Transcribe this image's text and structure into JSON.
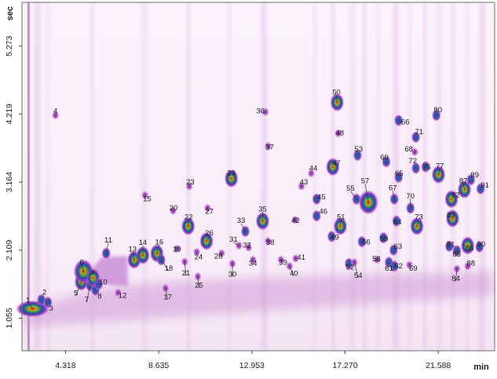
{
  "chart_data": {
    "type": "heatmap",
    "title": "",
    "xlabel": "",
    "ylabel": "",
    "x_unit": "min",
    "y_unit": "sec",
    "x_ticks": [
      "4.318",
      "8.635",
      "12.953",
      "17.270",
      "21.588"
    ],
    "x_tick_values": [
      4.318,
      8.635,
      12.953,
      17.27,
      21.588
    ],
    "y_ticks": [
      "1.055",
      "2.109",
      "3.164",
      "4.219",
      "5.273"
    ],
    "y_tick_values": [
      1.055,
      2.109,
      3.164,
      4.219,
      5.273
    ],
    "xlim": [
      2.3,
      24.2
    ],
    "ylim": [
      0.55,
      5.95
    ],
    "grid": false,
    "legend": "none",
    "colors": {
      "background": "#fbf3fb",
      "low": "#b44fc2",
      "mid": "#2a4fb4",
      "high": "#c81e1e",
      "border": "#606060"
    },
    "peaks": [
      {
        "label": "1",
        "x": 2.79,
        "y": 1.2,
        "lx": 2.58,
        "ly": 1.33
      },
      {
        "label": "2",
        "x": 3.2,
        "y": 1.34,
        "lx": 3.34,
        "ly": 1.45
      },
      {
        "label": "3",
        "x": 3.5,
        "y": 1.3,
        "lx": 3.65,
        "ly": 1.2
      },
      {
        "label": "4",
        "x": 3.85,
        "y": 4.2,
        "lx": 3.85,
        "ly": 4.26
      },
      {
        "label": "5",
        "x": 5.05,
        "y": 1.62,
        "lx": 4.8,
        "ly": 1.44
      },
      {
        "label": "6",
        "x": 5.15,
        "y": 1.78,
        "lx": 5.06,
        "ly": 1.91
      },
      {
        "label": "7",
        "x": 5.45,
        "y": 1.56,
        "lx": 5.3,
        "ly": 1.34
      },
      {
        "label": "8",
        "x": 5.7,
        "y": 1.49,
        "lx": 5.9,
        "ly": 1.39
      },
      {
        "label": "9",
        "x": 5.6,
        "y": 1.68,
        "lx": 5.56,
        "ly": 1.76
      },
      {
        "label": "10",
        "x": 5.85,
        "y": 1.58,
        "lx": 6.06,
        "ly": 1.61
      },
      {
        "label": "11",
        "x": 6.2,
        "y": 2.06,
        "lx": 6.3,
        "ly": 2.26
      },
      {
        "label": "12",
        "x": 6.75,
        "y": 1.45,
        "lx": 6.96,
        "ly": 1.4
      },
      {
        "label": "13",
        "x": 7.5,
        "y": 1.96,
        "lx": 7.42,
        "ly": 2.12
      },
      {
        "label": "14",
        "x": 7.9,
        "y": 2.03,
        "lx": 7.9,
        "ly": 2.22
      },
      {
        "label": "15",
        "x": 8.0,
        "y": 2.96,
        "lx": 8.1,
        "ly": 2.9
      },
      {
        "label": "16",
        "x": 8.55,
        "y": 2.06,
        "lx": 8.66,
        "ly": 2.23
      },
      {
        "label": "17",
        "x": 8.95,
        "y": 1.52,
        "lx": 9.05,
        "ly": 1.38
      },
      {
        "label": "18",
        "x": 8.75,
        "y": 1.96,
        "lx": 9.1,
        "ly": 1.82
      },
      {
        "label": "19",
        "x": 9.48,
        "y": 2.13,
        "lx": 9.48,
        "ly": 2.12
      },
      {
        "label": "20",
        "x": 9.3,
        "y": 2.72,
        "lx": 9.32,
        "ly": 2.76
      },
      {
        "label": "21",
        "x": 9.84,
        "y": 1.93,
        "lx": 9.9,
        "ly": 1.75
      },
      {
        "label": "22",
        "x": 10.0,
        "y": 2.48,
        "lx": 10.02,
        "ly": 2.62
      },
      {
        "label": "23",
        "x": 10.05,
        "y": 3.1,
        "lx": 10.1,
        "ly": 3.16
      },
      {
        "label": "24",
        "x": 10.4,
        "y": 2.08,
        "lx": 10.48,
        "ly": 2.0
      },
      {
        "label": "25",
        "x": 10.45,
        "y": 1.7,
        "lx": 10.5,
        "ly": 1.56
      },
      {
        "label": "26",
        "x": 10.85,
        "y": 2.25,
        "lx": 10.98,
        "ly": 2.37
      },
      {
        "label": "27",
        "x": 10.9,
        "y": 2.76,
        "lx": 10.98,
        "ly": 2.7
      },
      {
        "label": "28",
        "x": 11.55,
        "y": 2.06,
        "lx": 11.4,
        "ly": 2.01
      },
      {
        "label": "29",
        "x": 12.0,
        "y": 3.22,
        "lx": 12.0,
        "ly": 3.3
      },
      {
        "label": "30",
        "x": 12.05,
        "y": 1.9,
        "lx": 12.05,
        "ly": 1.73
      },
      {
        "label": "31",
        "x": 12.35,
        "y": 2.18,
        "lx": 12.1,
        "ly": 2.27
      },
      {
        "label": "32",
        "x": 12.8,
        "y": 2.15,
        "lx": 12.72,
        "ly": 2.18
      },
      {
        "label": "33",
        "x": 12.65,
        "y": 2.4,
        "lx": 12.45,
        "ly": 2.56
      },
      {
        "label": "34",
        "x": 13.0,
        "y": 1.96,
        "lx": 13.0,
        "ly": 1.9
      },
      {
        "label": "35",
        "x": 13.45,
        "y": 2.56,
        "lx": 13.45,
        "ly": 2.74
      },
      {
        "label": "36",
        "x": 13.58,
        "y": 4.25,
        "lx": 13.35,
        "ly": 4.26
      },
      {
        "label": "37",
        "x": 13.7,
        "y": 3.72,
        "lx": 13.78,
        "ly": 3.7
      },
      {
        "label": "38",
        "x": 13.7,
        "y": 2.25,
        "lx": 13.8,
        "ly": 2.22
      },
      {
        "label": "39",
        "x": 14.3,
        "y": 1.96,
        "lx": 14.4,
        "ly": 1.91
      },
      {
        "label": "40",
        "x": 14.7,
        "y": 1.86,
        "lx": 14.9,
        "ly": 1.74
      },
      {
        "label": "41",
        "x": 14.98,
        "y": 1.98,
        "lx": 15.24,
        "ly": 1.99
      },
      {
        "label": "42",
        "x": 14.95,
        "y": 2.58,
        "lx": 14.98,
        "ly": 2.56
      },
      {
        "label": "43",
        "x": 15.25,
        "y": 3.1,
        "lx": 15.36,
        "ly": 3.16
      },
      {
        "label": "44",
        "x": 15.7,
        "y": 3.3,
        "lx": 15.8,
        "ly": 3.37
      },
      {
        "label": "45",
        "x": 15.95,
        "y": 2.9,
        "lx": 16.17,
        "ly": 2.93
      },
      {
        "label": "46",
        "x": 15.95,
        "y": 2.64,
        "lx": 16.26,
        "ly": 2.7
      },
      {
        "label": "47",
        "x": 16.7,
        "y": 3.4,
        "lx": 16.86,
        "ly": 3.45
      },
      {
        "label": "48",
        "x": 16.95,
        "y": 3.92,
        "lx": 17.03,
        "ly": 3.92
      },
      {
        "label": "49",
        "x": 16.65,
        "y": 2.32,
        "lx": 16.8,
        "ly": 2.3
      },
      {
        "label": "50",
        "x": 16.9,
        "y": 4.4,
        "lx": 16.87,
        "ly": 4.55
      },
      {
        "label": "51",
        "x": 17.05,
        "y": 2.48,
        "lx": 17.08,
        "ly": 2.62
      },
      {
        "label": "52",
        "x": 17.45,
        "y": 1.9,
        "lx": 17.5,
        "ly": 1.84
      },
      {
        "label": "53",
        "x": 17.85,
        "y": 3.58,
        "lx": 17.9,
        "ly": 3.67
      },
      {
        "label": "54",
        "x": 17.7,
        "y": 1.92,
        "lx": 17.88,
        "ly": 1.71
      },
      {
        "label": "55",
        "x": 17.8,
        "y": 2.9,
        "lx": 17.52,
        "ly": 3.06
      },
      {
        "label": "56",
        "x": 18.05,
        "y": 2.24,
        "lx": 18.25,
        "ly": 2.23
      },
      {
        "label": "57",
        "x": 18.35,
        "y": 2.85,
        "lx": 18.2,
        "ly": 3.18
      },
      {
        "label": "58",
        "x": 18.75,
        "y": 1.96,
        "lx": 18.72,
        "ly": 1.97
      },
      {
        "label": "59",
        "x": 19.05,
        "y": 2.3,
        "lx": 19.07,
        "ly": 2.28
      },
      {
        "label": "60",
        "x": 19.18,
        "y": 3.48,
        "lx": 19.09,
        "ly": 3.54
      },
      {
        "label": "61",
        "x": 19.3,
        "y": 1.92,
        "lx": 19.31,
        "ly": 1.82
      },
      {
        "label": "62",
        "x": 19.55,
        "y": 1.86,
        "lx": 19.75,
        "ly": 1.86
      },
      {
        "label": "63",
        "x": 19.52,
        "y": 2.11,
        "lx": 19.72,
        "ly": 2.16
      },
      {
        "label": "64",
        "x": 19.65,
        "y": 2.56,
        "lx": 19.7,
        "ly": 2.54
      },
      {
        "label": "65",
        "x": 19.75,
        "y": 3.24,
        "lx": 19.77,
        "ly": 3.29
      },
      {
        "label": "66",
        "x": 19.75,
        "y": 4.12,
        "lx": 20.06,
        "ly": 4.09
      },
      {
        "label": "67",
        "x": 19.55,
        "y": 2.9,
        "lx": 19.48,
        "ly": 3.07
      },
      {
        "label": "68",
        "x": 20.5,
        "y": 3.63,
        "lx": 20.22,
        "ly": 3.67
      },
      {
        "label": "69",
        "x": 20.25,
        "y": 1.88,
        "lx": 20.43,
        "ly": 1.82
      },
      {
        "label": "70",
        "x": 20.3,
        "y": 2.76,
        "lx": 20.3,
        "ly": 2.94
      },
      {
        "label": "71",
        "x": 20.55,
        "y": 3.86,
        "lx": 20.7,
        "ly": 3.94
      },
      {
        "label": "72",
        "x": 20.55,
        "y": 3.38,
        "lx": 20.41,
        "ly": 3.49
      },
      {
        "label": "73",
        "x": 20.6,
        "y": 2.48,
        "lx": 20.69,
        "ly": 2.62
      },
      {
        "label": "75",
        "x": 21.0,
        "y": 3.4,
        "lx": 21.05,
        "ly": 3.39
      },
      {
        "label": "77",
        "x": 21.6,
        "y": 3.28,
        "lx": 21.66,
        "ly": 3.41
      },
      {
        "label": "80",
        "x": 21.5,
        "y": 4.2,
        "lx": 21.57,
        "ly": 4.28
      },
      {
        "label": "81",
        "x": 22.1,
        "y": 2.17,
        "lx": 22.17,
        "ly": 2.19
      },
      {
        "label": "82",
        "x": 22.2,
        "y": 2.9,
        "lx": 22.4,
        "ly": 2.96
      },
      {
        "label": "83",
        "x": 22.25,
        "y": 2.6,
        "lx": 22.17,
        "ly": 2.65
      },
      {
        "label": "84",
        "x": 22.45,
        "y": 1.82,
        "lx": 22.4,
        "ly": 1.66
      },
      {
        "label": "85",
        "x": 22.45,
        "y": 2.1,
        "lx": 22.44,
        "ly": 2.04
      },
      {
        "label": "86",
        "x": 22.95,
        "y": 2.18,
        "lx": 23.04,
        "ly": 2.13
      },
      {
        "label": "87",
        "x": 22.8,
        "y": 3.05,
        "lx": 22.75,
        "ly": 3.18
      },
      {
        "label": "88",
        "x": 22.95,
        "y": 1.86,
        "lx": 23.1,
        "ly": 1.9
      },
      {
        "label": "89",
        "x": 23.1,
        "y": 3.2,
        "lx": 23.28,
        "ly": 3.27
      },
      {
        "label": "90",
        "x": 23.5,
        "y": 2.16,
        "lx": 23.58,
        "ly": 2.2
      },
      {
        "label": "91",
        "x": 23.55,
        "y": 3.06,
        "lx": 23.75,
        "ly": 3.11
      }
    ]
  }
}
